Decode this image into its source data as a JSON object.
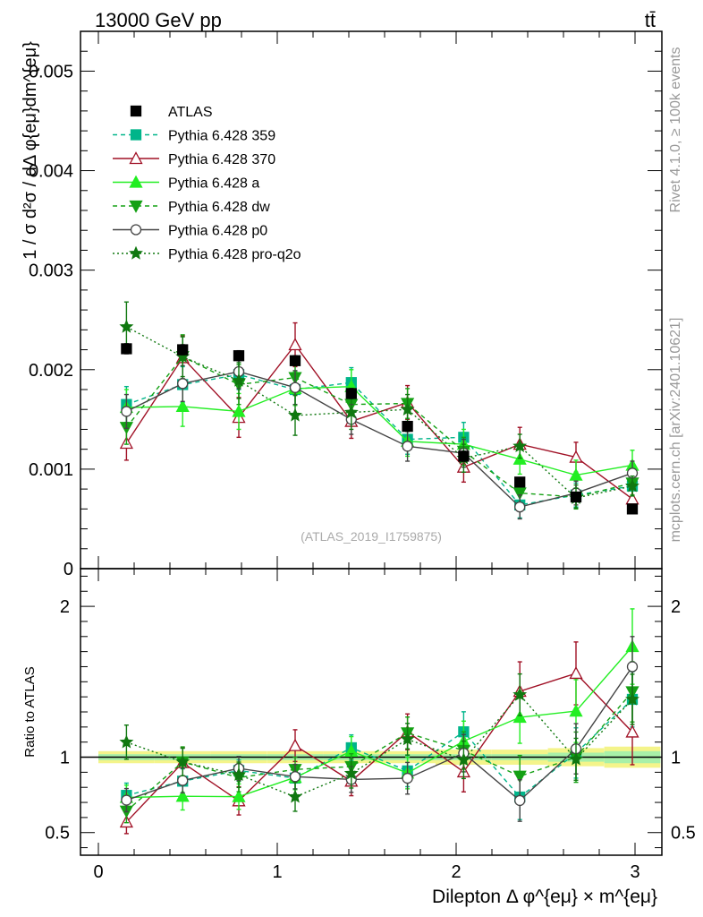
{
  "header": {
    "left": "13000 GeV pp",
    "right": "tt̄"
  },
  "side": {
    "rivet": "Rivet 4.1.0, ≥ 100k events",
    "mcplots": "mcplots.cern.ch [arXiv:2401.10621]"
  },
  "watermark": "(ATLAS_2019_I1759875)",
  "chart_data": {
    "type": "line",
    "title": "13000 GeV pp",
    "xlabel": "Dilepton Δ φ^{eμ} × m^{eμ}",
    "ylabel": "1 / σ  d²σ / dΔ φ{eμ}dm^{eμ}",
    "ratio_ylabel": "Ratio to ATLAS",
    "xlim": [
      -0.1,
      3.15
    ],
    "ylim": [
      0,
      0.0054
    ],
    "ratio_ylim": [
      0.35,
      2.25
    ],
    "x": [
      0.157,
      0.471,
      0.785,
      1.1,
      1.414,
      1.728,
      2.042,
      2.356,
      2.67,
      2.985
    ],
    "xticks": [
      "0",
      "1",
      "2",
      "3"
    ],
    "yticks": [
      "0",
      "0.001",
      "0.002",
      "0.003",
      "0.004",
      "0.005"
    ],
    "ratio_yticks": [
      "0.5",
      "1",
      "2"
    ],
    "data": {
      "name": "ATLAS",
      "color": "#000000",
      "values": [
        0.00221,
        0.0022,
        0.00214,
        0.00209,
        0.00176,
        0.00143,
        0.00113,
        0.00087,
        0.00072,
        0.0006
      ],
      "errors": [
        5e-05,
        5e-05,
        5e-05,
        5e-05,
        5e-05,
        5e-05,
        5e-05,
        4e-05,
        4e-05,
        4e-05
      ]
    },
    "band": {
      "inner_color": "#a8f0a8",
      "outer_color": "#f4f48a",
      "inner": [
        0.02,
        0.02,
        0.02,
        0.02,
        0.02,
        0.02,
        0.02,
        0.02,
        0.03,
        0.04
      ],
      "outer": [
        0.04,
        0.04,
        0.04,
        0.04,
        0.04,
        0.04,
        0.05,
        0.05,
        0.06,
        0.07
      ]
    },
    "series": [
      {
        "name": "Pythia 6.428 359",
        "color": "#00b58a",
        "dash": "5,4",
        "marker": "square",
        "open": false,
        "values": [
          0.00165,
          0.00185,
          0.00195,
          0.0018,
          0.00187,
          0.0013,
          0.00132,
          0.00064,
          0.00074,
          0.00083
        ],
        "errors": [
          0.00018,
          0.00018,
          0.00015,
          0.00015,
          0.00015,
          0.00015,
          0.00015,
          0.00013,
          0.00012,
          0.00011
        ]
      },
      {
        "name": "Pythia 6.428 370",
        "color": "#a01025",
        "dash": "",
        "marker": "triangle",
        "open": true,
        "values": [
          0.00126,
          0.00212,
          0.00152,
          0.00225,
          0.00148,
          0.00167,
          0.00102,
          0.00125,
          0.00112,
          0.0007
        ],
        "errors": [
          0.00017,
          0.00022,
          0.0002,
          0.00022,
          0.00017,
          0.00017,
          0.00015,
          0.00017,
          0.00015,
          0.00013
        ]
      },
      {
        "name": "Pythia 6.428 a",
        "color": "#22ee22",
        "dash": "",
        "marker": "triangle",
        "open": false,
        "values": [
          0.00162,
          0.00163,
          0.00158,
          0.00181,
          0.00183,
          0.00128,
          0.00125,
          0.0011,
          0.00094,
          0.00104
        ],
        "errors": [
          0.00018,
          0.0002,
          0.00018,
          0.00017,
          0.00017,
          0.00015,
          0.00015,
          0.00015,
          0.00015,
          0.00015
        ]
      },
      {
        "name": "Pythia 6.428 dw",
        "color": "#14a014",
        "dash": "5,4",
        "marker": "triangledown",
        "open": false,
        "values": [
          0.00142,
          0.00213,
          0.00185,
          0.00192,
          0.00165,
          0.00166,
          0.00118,
          0.00076,
          0.00072,
          0.00086
        ],
        "errors": [
          0.00017,
          0.00022,
          0.0002,
          0.00017,
          0.00015,
          0.00015,
          0.00014,
          0.00012,
          0.00012,
          0.00012
        ]
      },
      {
        "name": "Pythia 6.428 p0",
        "color": "#444444",
        "dash": "",
        "marker": "circle",
        "open": true,
        "values": [
          0.00158,
          0.00186,
          0.00198,
          0.00182,
          0.0015,
          0.00123,
          0.00116,
          0.00062,
          0.00076,
          0.00096
        ],
        "errors": [
          0.00017,
          0.00018,
          0.00017,
          0.00017,
          0.00015,
          0.00015,
          0.00014,
          0.00012,
          0.00012,
          0.00012
        ]
      },
      {
        "name": "Pythia 6.428 pro-q2o",
        "color": "#107810",
        "dash": "2,3",
        "marker": "star",
        "open": false,
        "values": [
          0.00243,
          0.00213,
          0.00189,
          0.00154,
          0.00157,
          0.0016,
          0.00111,
          0.00123,
          0.00071,
          0.00083
        ],
        "errors": [
          0.00025,
          0.0002,
          0.00018,
          0.0002,
          0.00017,
          0.00015,
          0.00014,
          0.00012,
          0.0001,
          0.0001
        ]
      }
    ]
  }
}
